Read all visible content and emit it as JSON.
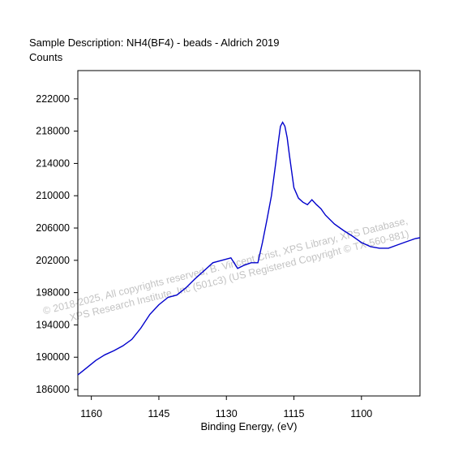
{
  "header": {
    "sample_description": "Sample Description:  NH4(BF4) - beads - Aldrich 2019",
    "y_unit": "Counts"
  },
  "watermark": {
    "line1": "© 2018-2025,  All copyrights reserved,   B. Vincent Crist,  XPS Library, XPS Database,",
    "line2": "XPS Research Institute, Inc (501c3)   (US Registered Copyright © TX-560-881)"
  },
  "chart_data": {
    "type": "line",
    "title": "Sample Description:  NH4(BF4) - beads - Aldrich 2019",
    "xlabel": "Binding Energy, (eV)",
    "ylabel": "Counts",
    "x_reversed": true,
    "xlim": [
      1163,
      1087
    ],
    "ylim": [
      185200,
      225500
    ],
    "x_ticks": [
      1160,
      1145,
      1130,
      1115,
      1100
    ],
    "x_tick_labels": [
      "1160",
      "1145",
      "1130",
      "1115",
      "1100"
    ],
    "y_ticks": [
      186000,
      190000,
      194000,
      198000,
      202000,
      206000,
      210000,
      214000,
      218000,
      222000
    ],
    "y_tick_labels": [
      "186000",
      "190000",
      "194000",
      "198000",
      "202000",
      "206000",
      "210000",
      "214000",
      "218000",
      "222000"
    ],
    "line_color": "#0000cc",
    "series": [
      {
        "x": [
          1163,
          1161,
          1159,
          1157,
          1155,
          1153,
          1151,
          1149,
          1147,
          1145,
          1143,
          1141,
          1139,
          1137,
          1135,
          1133,
          1131,
          1129,
          1127.5,
          1126,
          1124.5,
          1123,
          1122,
          1121,
          1120,
          1119,
          1118.5,
          1118,
          1117.5,
          1117,
          1116.5,
          1116,
          1115,
          1114,
          1113,
          1112,
          1111,
          1110,
          1109,
          1108,
          1106,
          1104,
          1102,
          1100,
          1098,
          1096,
          1094,
          1092,
          1090,
          1088,
          1087
        ],
        "y": [
          187800,
          188700,
          189600,
          190300,
          190800,
          191400,
          192200,
          193600,
          195300,
          196500,
          197400,
          197700,
          198600,
          199700,
          200700,
          201700,
          202000,
          202300,
          201000,
          201400,
          201700,
          201700,
          204200,
          207000,
          210000,
          214200,
          216500,
          218600,
          219100,
          218600,
          217200,
          215000,
          211000,
          209700,
          209200,
          208900,
          209500,
          208900,
          208400,
          207600,
          206500,
          205700,
          205000,
          204200,
          203700,
          203500,
          203500,
          203900,
          204300,
          204700,
          204800
        ]
      }
    ]
  }
}
